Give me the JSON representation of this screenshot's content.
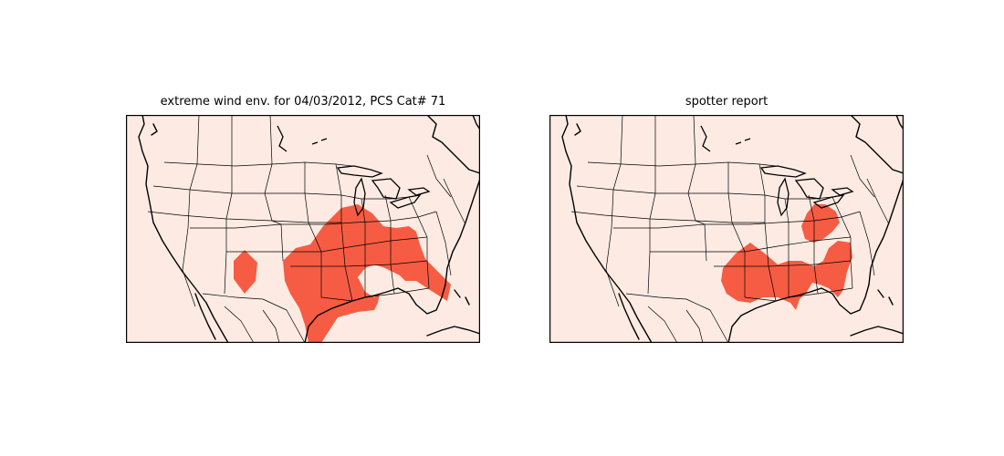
{
  "panels": [
    {
      "id": "environment",
      "title": "extreme wind env. for 04/03/2012, PCS Cat# 71"
    },
    {
      "id": "spotter",
      "title": "spotter report"
    }
  ],
  "colors": {
    "background": "#fdebe3",
    "highlight": "#f65c43",
    "boundary": "#000000"
  }
}
